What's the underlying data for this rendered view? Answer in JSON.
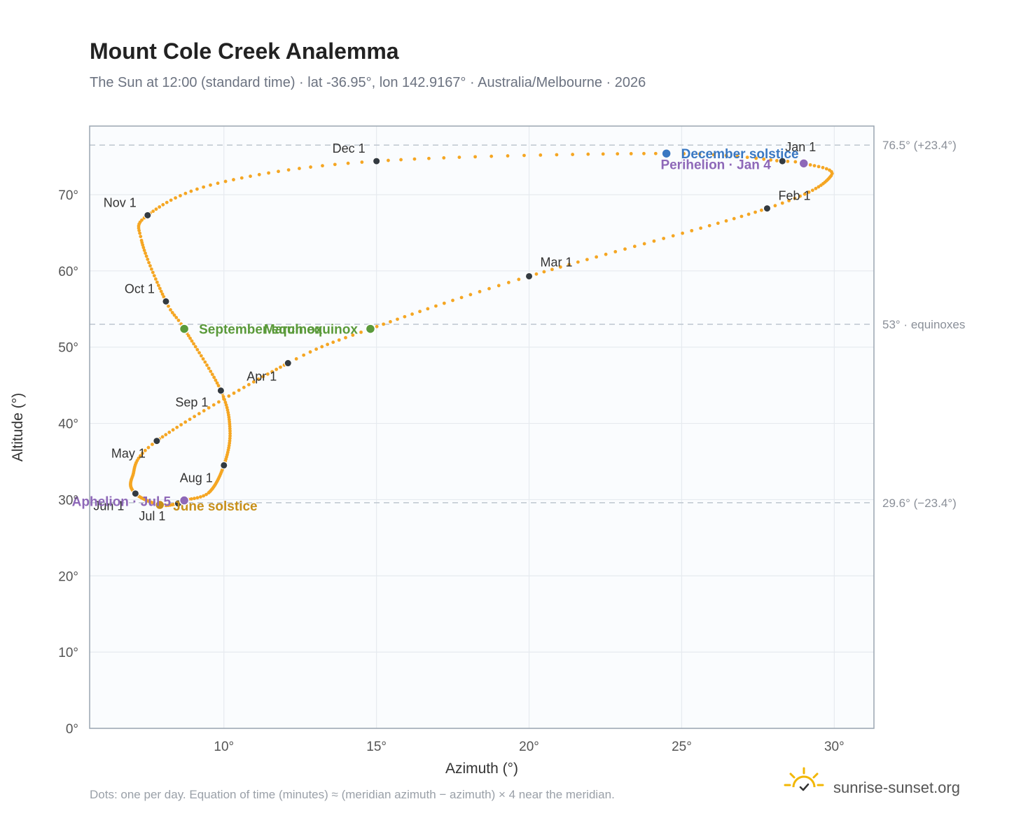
{
  "header": {
    "title": "Mount Cole Creek Analemma",
    "subtitle": "The Sun at 12:00 (standard time) · lat -36.95°, lon 142.9167° · Australia/Melbourne · 2026"
  },
  "footer": {
    "note": "Dots: one per day. Equation of time (minutes) ≈ (meridian azimuth − azimuth) × 4 near the meridian.",
    "brand": "sunrise-sunset.org",
    "logo_icon": "sun-logo-icon"
  },
  "colors": {
    "path": "#f5a623",
    "month": "#333a40",
    "december_solstice": "#3a78c2",
    "june_solstice": "#c8901a",
    "equinox": "#5a9a3a",
    "apsis": "#8e68b8",
    "grid": "#e6eaef",
    "reference_line": "#c2cad3",
    "plot_background": "#fafcfe",
    "plot_border": "#9aa5b1"
  },
  "chart_data": {
    "type": "scatter",
    "title": "Mount Cole Creek Analemma",
    "xlabel": "Azimuth (°)",
    "ylabel": "Altitude (°)",
    "xlim": [
      5.6,
      31.3
    ],
    "ylim": [
      0,
      79
    ],
    "x_ticks": [
      10,
      15,
      20,
      25,
      30
    ],
    "x_tick_labels": [
      "10°",
      "15°",
      "20°",
      "25°",
      "30°"
    ],
    "y_ticks": [
      0,
      10,
      20,
      30,
      40,
      50,
      60,
      70
    ],
    "y_tick_labels": [
      "0°",
      "10°",
      "20°",
      "30°",
      "40°",
      "50°",
      "60°",
      "70°"
    ],
    "grid": true,
    "reference_lines": [
      {
        "y": 76.5,
        "label": "76.5° (+23.4°)"
      },
      {
        "y": 53,
        "label": "53° · equinoxes"
      },
      {
        "y": 29.6,
        "label": "29.6° (−23.4°)"
      }
    ],
    "path_keypoints": [
      {
        "doy": 1,
        "x": 28.3,
        "y": 74.4
      },
      {
        "doy": 4,
        "x": 29.0,
        "y": 74.1
      },
      {
        "doy": 14,
        "x": 29.9,
        "y": 72.5
      },
      {
        "doy": 32,
        "x": 27.8,
        "y": 68.2
      },
      {
        "doy": 60,
        "x": 20.0,
        "y": 59.3
      },
      {
        "doy": 79,
        "x": 14.8,
        "y": 52.4
      },
      {
        "doy": 91,
        "x": 12.1,
        "y": 47.9
      },
      {
        "doy": 121,
        "x": 7.8,
        "y": 37.7
      },
      {
        "doy": 137,
        "x": 7.0,
        "y": 33.0
      },
      {
        "doy": 152,
        "x": 7.1,
        "y": 30.8
      },
      {
        "doy": 172,
        "x": 7.9,
        "y": 29.3
      },
      {
        "doy": 182,
        "x": 8.5,
        "y": 29.5
      },
      {
        "doy": 186,
        "x": 8.7,
        "y": 29.9
      },
      {
        "doy": 195,
        "x": 9.5,
        "y": 30.9
      },
      {
        "doy": 213,
        "x": 10.0,
        "y": 34.5
      },
      {
        "doy": 228,
        "x": 10.2,
        "y": 39.0
      },
      {
        "doy": 244,
        "x": 9.9,
        "y": 44.3
      },
      {
        "doy": 266,
        "x": 8.7,
        "y": 52.4
      },
      {
        "doy": 274,
        "x": 8.1,
        "y": 56.0
      },
      {
        "doy": 295,
        "x": 7.3,
        "y": 64.0
      },
      {
        "doy": 305,
        "x": 7.5,
        "y": 67.3
      },
      {
        "doy": 320,
        "x": 9.8,
        "y": 71.5
      },
      {
        "doy": 335,
        "x": 15.0,
        "y": 74.4
      },
      {
        "doy": 355,
        "x": 24.5,
        "y": 75.4
      },
      {
        "doy": 366,
        "x": 28.3,
        "y": 74.4
      }
    ],
    "months": [
      {
        "label": "Jan 1",
        "x": 28.3,
        "y": 74.4,
        "anchor": "start",
        "dx": 4,
        "dy": -14
      },
      {
        "label": "Feb 1",
        "x": 27.8,
        "y": 68.2,
        "anchor": "start",
        "dx": 16,
        "dy": -12
      },
      {
        "label": "Mar 1",
        "x": 20.0,
        "y": 59.3,
        "anchor": "start",
        "dx": 16,
        "dy": -14
      },
      {
        "label": "Apr 1",
        "x": 12.1,
        "y": 47.9,
        "anchor": "end",
        "dx": -16,
        "dy": 25
      },
      {
        "label": "May 1",
        "x": 7.8,
        "y": 37.7,
        "anchor": "end",
        "dx": -16,
        "dy": 24
      },
      {
        "label": "Jun 1",
        "x": 7.1,
        "y": 30.8,
        "anchor": "end",
        "dx": -16,
        "dy": 24
      },
      {
        "label": "Jul 1",
        "x": 8.5,
        "y": 29.5,
        "anchor": "end",
        "dx": -18,
        "dy": 24
      },
      {
        "label": "Aug 1",
        "x": 10.0,
        "y": 34.5,
        "anchor": "end",
        "dx": -16,
        "dy": 24
      },
      {
        "label": "Sep 1",
        "x": 9.9,
        "y": 44.3,
        "anchor": "end",
        "dx": -18,
        "dy": 23
      },
      {
        "label": "Oct 1",
        "x": 8.1,
        "y": 56.0,
        "anchor": "end",
        "dx": -16,
        "dy": -12
      },
      {
        "label": "Nov 1",
        "x": 7.5,
        "y": 67.3,
        "anchor": "end",
        "dx": -16,
        "dy": -12
      },
      {
        "label": "Dec 1",
        "x": 15.0,
        "y": 74.4,
        "anchor": "end",
        "dx": -16,
        "dy": -12
      }
    ],
    "events": [
      {
        "label": "December solstice",
        "x": 24.5,
        "y": 75.4,
        "color": "#3a78c2",
        "anchor": "start",
        "dx": 21,
        "dy": 7
      },
      {
        "label": "Perihelion · Jan 4",
        "x": 29.0,
        "y": 74.1,
        "color": "#8e68b8",
        "anchor": "end",
        "dx": -47,
        "dy": 8
      },
      {
        "label": "March equinox",
        "x": 14.8,
        "y": 52.4,
        "color": "#5a9a3a",
        "anchor": "end",
        "dx": -18,
        "dy": 7
      },
      {
        "label": "September equinox",
        "x": 8.7,
        "y": 52.4,
        "color": "#5a9a3a",
        "anchor": "start",
        "dx": 21,
        "dy": 7
      },
      {
        "label": "June solstice",
        "x": 7.9,
        "y": 29.3,
        "color": "#c8901a",
        "anchor": "start",
        "dx": 19,
        "dy": 8
      },
      {
        "label": "Aphelion · Jul 5",
        "x": 8.7,
        "y": 29.9,
        "color": "#8e68b8",
        "anchor": "end",
        "dx": -19,
        "dy": 8
      }
    ]
  }
}
